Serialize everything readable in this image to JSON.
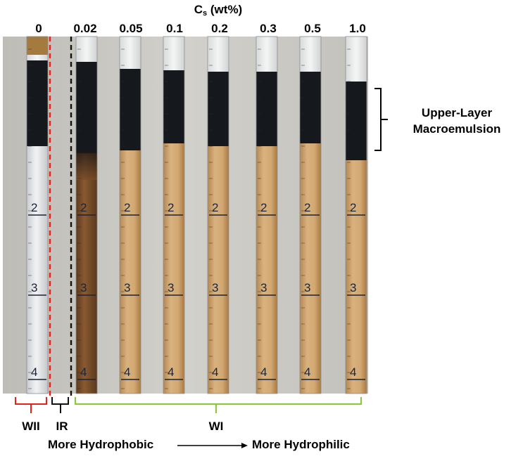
{
  "axis_title": {
    "symbol": "C",
    "subscript": "s",
    "unit": " (wt%)"
  },
  "concentrations": [
    "0",
    "0.02",
    "0.05",
    "0.1",
    "0.2",
    "0.3",
    "0.5",
    "1.0"
  ],
  "graduation_numbers": [
    "2",
    "3",
    "4"
  ],
  "annotation": {
    "line1": "Upper-Layer",
    "line2": "Macroemulsion"
  },
  "groups": {
    "wii": "WII",
    "ir": "IR",
    "wi": "WI"
  },
  "trend": {
    "left": "More Hydrophobic",
    "right": "More Hydrophilic"
  },
  "colors": {
    "wii_bracket": "#e8221b",
    "ir_bracket": "#111111",
    "wi_bracket": "#8dc63f",
    "oil": "#15181c",
    "brown_emulsion": "#7d4f2c",
    "tan_emulsion": "#cfa470",
    "clear_water": "#e4e6e8",
    "backdrop": "#c9c7c0"
  }
}
